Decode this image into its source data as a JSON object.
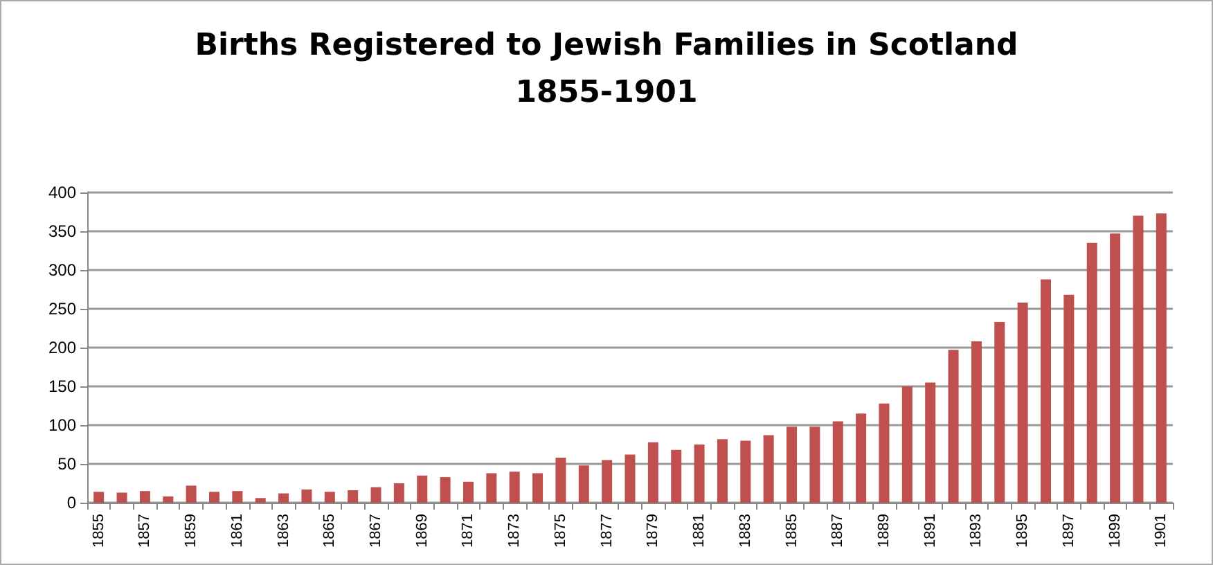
{
  "chart_data": {
    "type": "bar",
    "title": "Births Registered to Jewish Families in Scotland\n1855-1901",
    "categories": [
      "1855",
      null,
      "1857",
      null,
      "1859",
      null,
      "1861",
      null,
      "1863",
      null,
      "1865",
      null,
      "1867",
      null,
      "1869",
      null,
      "1871",
      null,
      "1873",
      null,
      "1875",
      null,
      "1877",
      null,
      "1879",
      null,
      "1881",
      null,
      "1883",
      null,
      "1885",
      null,
      "1887",
      null,
      "1889",
      null,
      "1891",
      null,
      "1893",
      null,
      "1895",
      null,
      "1897",
      null,
      "1899",
      null,
      "1901"
    ],
    "values": [
      14,
      13,
      15,
      8,
      22,
      14,
      15,
      6,
      12,
      17,
      14,
      16,
      20,
      25,
      35,
      33,
      27,
      38,
      40,
      38,
      58,
      48,
      55,
      62,
      78,
      68,
      75,
      82,
      80,
      87,
      98,
      98,
      105,
      115,
      128,
      150,
      155,
      197,
      208,
      233,
      258,
      288,
      268,
      335,
      347,
      370,
      373
    ],
    "color": "#c0504d",
    "ylim": [
      0,
      400
    ],
    "yticks": [
      0,
      50,
      100,
      150,
      200,
      250,
      300,
      350,
      400
    ],
    "grid": "y"
  }
}
